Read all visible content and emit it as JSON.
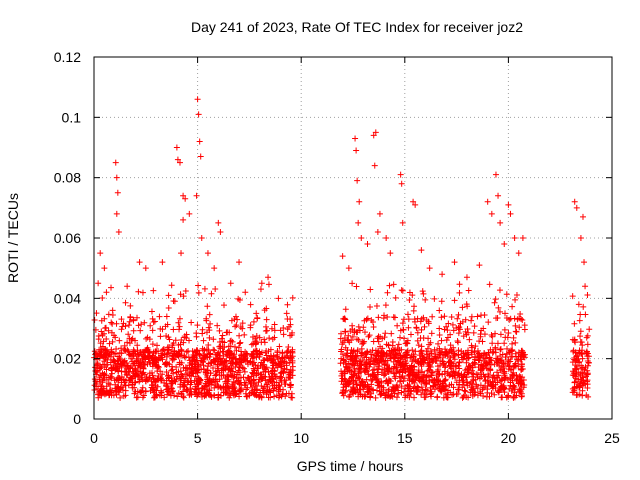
{
  "chart_data": {
    "type": "scatter",
    "title": "Day 241 of 2023, Rate Of TEC Index for receiver joz2",
    "xlabel": "GPS time / hours",
    "ylabel": "ROTI / TECUs",
    "xlim": [
      0,
      25
    ],
    "ylim": [
      0,
      0.12
    ],
    "x_ticks": [
      "0",
      "5",
      "10",
      "15",
      "20",
      "25"
    ],
    "y_ticks": [
      "0",
      "0.02",
      "0.04",
      "0.06",
      "0.08",
      "0.1",
      "0.12"
    ],
    "grid": true,
    "marker": "plus",
    "color": "#ff0000",
    "data_segments": [
      {
        "start_h": 0.0,
        "end_h": 9.6
      },
      {
        "start_h": 11.9,
        "end_h": 20.8
      },
      {
        "start_h": 23.1,
        "end_h": 23.9
      }
    ],
    "series": [
      {
        "points": [
          [
            0.2,
            0.045
          ],
          [
            0.3,
            0.055
          ],
          [
            0.5,
            0.05
          ],
          [
            0.6,
            0.042
          ],
          [
            0.9,
            0.036
          ],
          [
            1.05,
            0.085
          ],
          [
            1.1,
            0.08
          ],
          [
            1.15,
            0.075
          ],
          [
            1.2,
            0.062
          ],
          [
            1.1,
            0.068
          ],
          [
            1.6,
            0.044
          ],
          [
            2.2,
            0.052
          ],
          [
            2.5,
            0.05
          ],
          [
            3.3,
            0.052
          ],
          [
            3.6,
            0.041
          ],
          [
            4.0,
            0.09
          ],
          [
            4.05,
            0.086
          ],
          [
            4.15,
            0.085
          ],
          [
            4.3,
            0.074
          ],
          [
            4.3,
            0.066
          ],
          [
            4.4,
            0.073
          ],
          [
            4.2,
            0.055
          ],
          [
            4.6,
            0.068
          ],
          [
            5.0,
            0.106
          ],
          [
            5.05,
            0.101
          ],
          [
            5.1,
            0.092
          ],
          [
            5.15,
            0.087
          ],
          [
            4.95,
            0.074
          ],
          [
            5.2,
            0.06
          ],
          [
            5.5,
            0.055
          ],
          [
            6.0,
            0.065
          ],
          [
            6.1,
            0.062
          ],
          [
            5.8,
            0.05
          ],
          [
            6.6,
            0.045
          ],
          [
            7.0,
            0.052
          ],
          [
            7.3,
            0.042
          ],
          [
            8.1,
            0.045
          ],
          [
            8.4,
            0.047
          ],
          [
            8.9,
            0.04
          ],
          [
            9.3,
            0.035
          ],
          [
            12.0,
            0.054
          ],
          [
            12.3,
            0.05
          ],
          [
            12.6,
            0.093
          ],
          [
            12.65,
            0.089
          ],
          [
            12.7,
            0.079
          ],
          [
            12.8,
            0.072
          ],
          [
            12.75,
            0.065
          ],
          [
            12.9,
            0.06
          ],
          [
            13.2,
            0.058
          ],
          [
            13.5,
            0.094
          ],
          [
            13.6,
            0.095
          ],
          [
            13.55,
            0.084
          ],
          [
            13.7,
            0.062
          ],
          [
            13.8,
            0.068
          ],
          [
            14.1,
            0.06
          ],
          [
            14.3,
            0.055
          ],
          [
            14.8,
            0.081
          ],
          [
            14.85,
            0.078
          ],
          [
            14.9,
            0.065
          ],
          [
            15.4,
            0.072
          ],
          [
            15.5,
            0.071
          ],
          [
            15.8,
            0.056
          ],
          [
            16.2,
            0.05
          ],
          [
            16.8,
            0.048
          ],
          [
            17.4,
            0.052
          ],
          [
            18.0,
            0.047
          ],
          [
            18.6,
            0.051
          ],
          [
            19.0,
            0.072
          ],
          [
            19.2,
            0.068
          ],
          [
            19.4,
            0.081
          ],
          [
            19.5,
            0.074
          ],
          [
            19.6,
            0.065
          ],
          [
            19.8,
            0.058
          ],
          [
            20.0,
            0.071
          ],
          [
            20.1,
            0.068
          ],
          [
            20.3,
            0.06
          ],
          [
            20.5,
            0.055
          ],
          [
            20.7,
            0.06
          ],
          [
            23.2,
            0.072
          ],
          [
            23.3,
            0.07
          ],
          [
            23.5,
            0.06
          ],
          [
            23.6,
            0.067
          ],
          [
            23.65,
            0.052
          ],
          [
            23.7,
            0.044
          ],
          [
            23.4,
            0.038
          ]
        ]
      }
    ]
  }
}
